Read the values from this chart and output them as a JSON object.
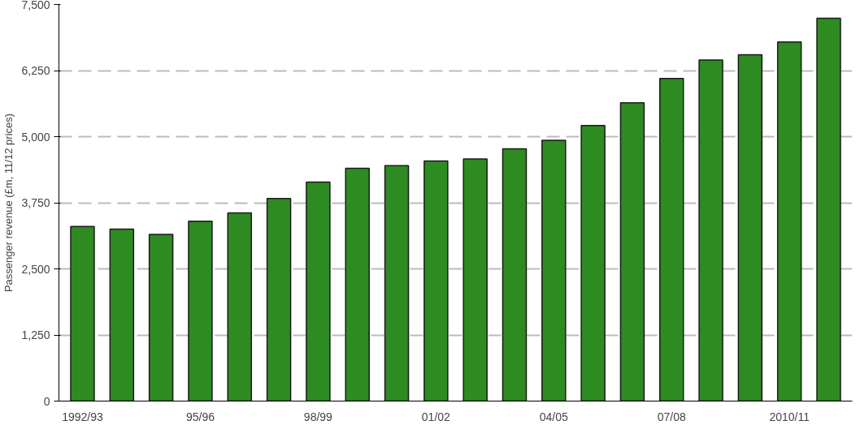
{
  "chart_data": {
    "type": "bar",
    "ylabel": "Passenger revenue (£m, 11/12 prices)",
    "categories": [
      "1992/93",
      null,
      null,
      "95/96",
      null,
      null,
      "98/99",
      null,
      null,
      "01/02",
      null,
      null,
      "04/05",
      null,
      null,
      "07/08",
      null,
      null,
      "2010/11",
      null
    ],
    "values": [
      3300,
      3250,
      3150,
      3400,
      3560,
      3830,
      4140,
      4400,
      4450,
      4540,
      4580,
      4770,
      4930,
      5210,
      5640,
      6100,
      6450,
      6550,
      6790,
      7240
    ],
    "color": "#2e8b22",
    "ylim": [
      0,
      7500
    ],
    "yticks": [
      0,
      {
        "value": 1250,
        "label": "1,250"
      },
      {
        "value": 2500,
        "label": "2,500"
      },
      {
        "value": 3750,
        "label": "3,750"
      },
      {
        "value": 5000,
        "label": "5,000"
      },
      {
        "value": 6250,
        "label": "6,250"
      },
      {
        "value": 7500,
        "label": "7,500"
      }
    ],
    "grid": "y",
    "line_style": "dashed"
  }
}
